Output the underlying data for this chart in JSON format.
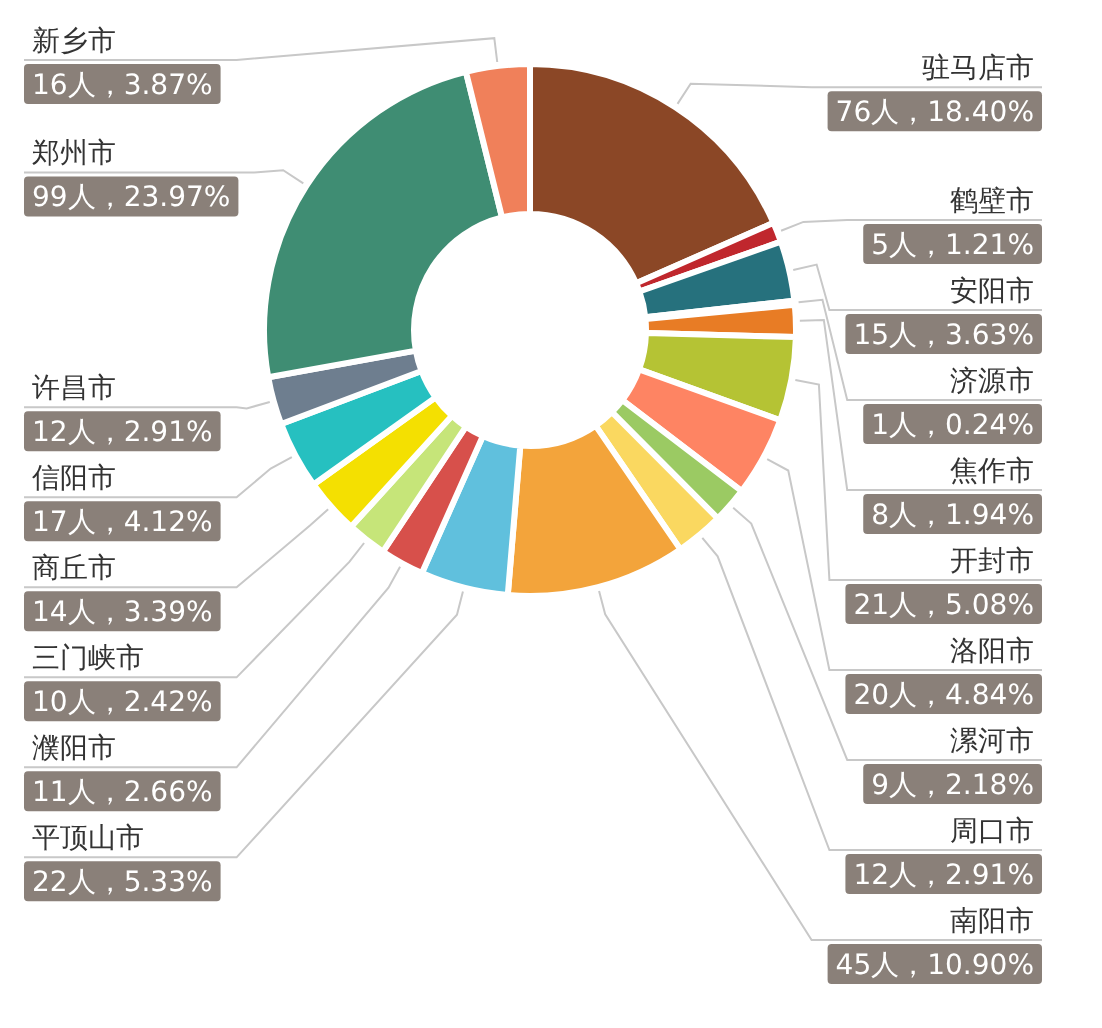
{
  "chart_data": {
    "type": "donut",
    "categories": [
      "驻马店市",
      "鹤壁市",
      "安阳市",
      "济源市",
      "焦作市",
      "开封市",
      "洛阳市",
      "漯河市",
      "周口市",
      "南阳市",
      "平顶山市",
      "濮阳市",
      "三门峡市",
      "商丘市",
      "信阳市",
      "许昌市",
      "郑州市",
      "新乡市"
    ],
    "values": [
      76,
      5,
      15,
      1,
      8,
      21,
      20,
      9,
      12,
      45,
      22,
      11,
      10,
      14,
      17,
      12,
      99,
      16
    ],
    "colors": [
      "#8b4726",
      "#c0272d",
      "#26717d",
      "#e87c25",
      "#e87c25",
      "#b5c334",
      "#fe8463",
      "#9bca63",
      "#fad860",
      "#f3a43b",
      "#60c0dd",
      "#d7504b",
      "#c6e579",
      "#f4e001",
      "#26c0c0",
      "#6e7e8f",
      "#3f8d73",
      "#f0805a"
    ],
    "value_labels": [
      "76人，18.40%",
      "5人，1.21%",
      "15人，3.63%",
      "1人，0.24%",
      "8人，1.94%",
      "21人，5.08%",
      "20人，4.84%",
      "9人，2.18%",
      "12人，2.91%",
      "45人，10.90%",
      "22人，5.33%",
      "11人，2.66%",
      "10人，2.42%",
      "14人，3.39%",
      "17人，4.12%",
      "12人，2.91%",
      "99人，23.97%",
      "16人，3.87%"
    ]
  }
}
